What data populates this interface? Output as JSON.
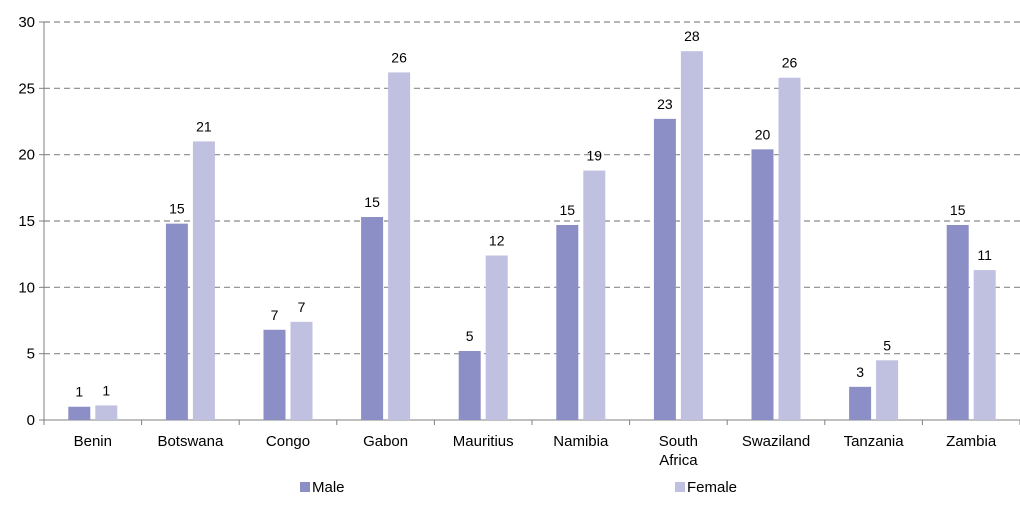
{
  "chart_data": {
    "type": "bar",
    "categories": [
      "Benin",
      "Botswana",
      "Congo",
      "Gabon",
      "Mauritius",
      "Namibia",
      "South Africa",
      "Swaziland",
      "Tanzania",
      "Zambia"
    ],
    "category_lines": [
      [
        "Benin"
      ],
      [
        "Botswana"
      ],
      [
        "Congo"
      ],
      [
        "Gabon"
      ],
      [
        "Mauritius"
      ],
      [
        "Namibia"
      ],
      [
        "South",
        "Africa"
      ],
      [
        "Swaziland"
      ],
      [
        "Tanzania"
      ],
      [
        "Zambia"
      ]
    ],
    "series": [
      {
        "name": "Male",
        "color": "#8b8fc6",
        "values": [
          1.0,
          14.8,
          6.8,
          15.3,
          5.2,
          14.7,
          22.7,
          20.4,
          2.5,
          14.7
        ],
        "labels": [
          "1",
          "15",
          "7",
          "15",
          "5",
          "15",
          "23",
          "20",
          "3",
          "15"
        ]
      },
      {
        "name": "Female",
        "color": "#c0c0e0",
        "values": [
          1.1,
          21.0,
          7.4,
          26.2,
          12.4,
          18.8,
          27.8,
          25.8,
          4.5,
          11.3
        ],
        "labels": [
          "1",
          "21",
          "7",
          "26",
          "12",
          "19",
          "28",
          "26",
          "5",
          "11"
        ]
      }
    ],
    "ylim": [
      0,
      30
    ],
    "yticks": [
      0,
      5,
      10,
      15,
      20,
      25,
      30
    ],
    "grid": true,
    "legend": "bottom",
    "title": "",
    "xlabel": "",
    "ylabel": ""
  }
}
